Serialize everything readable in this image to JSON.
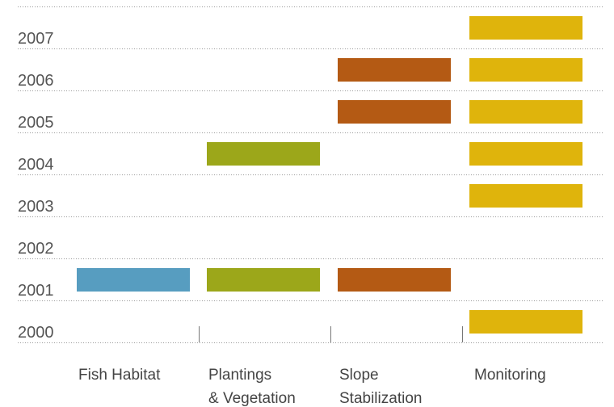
{
  "chart_data": {
    "type": "bar",
    "title": "",
    "xlabel": "",
    "ylabel": "",
    "years": [
      "2000",
      "2001",
      "2002",
      "2003",
      "2004",
      "2005",
      "2006",
      "2007"
    ],
    "categories": [
      {
        "lines": [
          "Fish Habitat"
        ]
      },
      {
        "lines": [
          "Plantings",
          "& Vegetation"
        ]
      },
      {
        "lines": [
          "Slope",
          "Stabilization"
        ]
      },
      {
        "lines": [
          "Monitoring"
        ]
      }
    ],
    "series": [
      {
        "color": "#579dc0",
        "years": [
          2001
        ]
      },
      {
        "color": "#9ca71a",
        "years": [
          2001,
          2004
        ]
      },
      {
        "color": "#b45a14",
        "years": [
          2001,
          2005,
          2006
        ]
      },
      {
        "color": "#dfb40c",
        "years": [
          2000,
          2003,
          2004,
          2005,
          2006,
          2007
        ]
      }
    ],
    "grid": true,
    "legend": "none"
  }
}
